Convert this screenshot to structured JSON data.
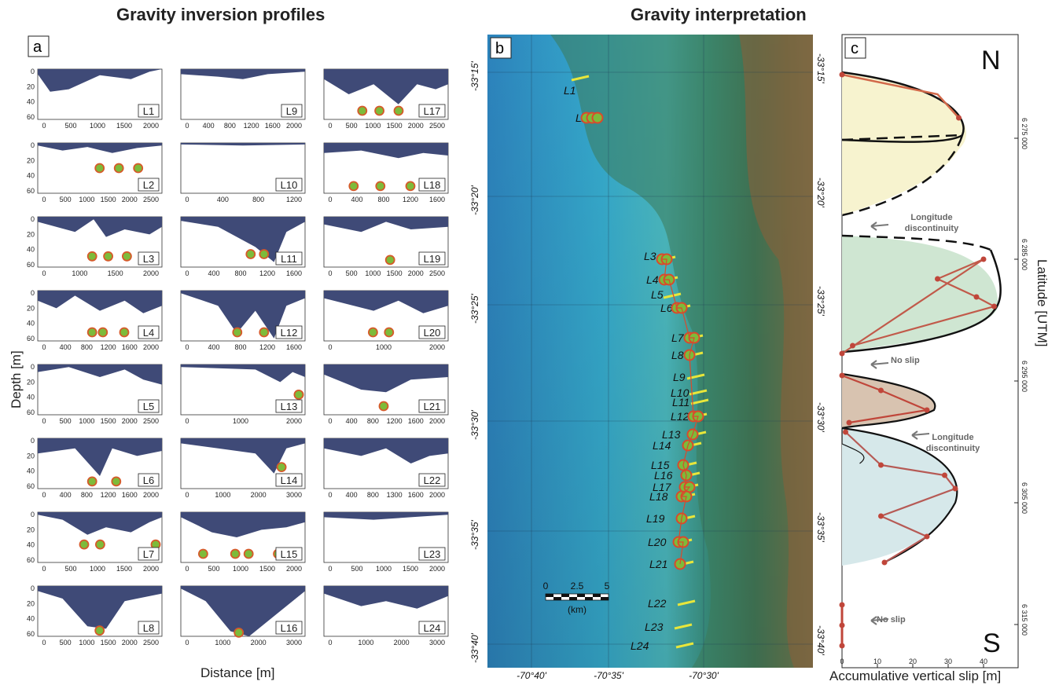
{
  "titles": {
    "left": "Gravity inversion profiles",
    "right": "Gravity interpretation"
  },
  "panel_a": {
    "letter": "a",
    "ylabel": "Depth [m]",
    "xlabel": "Distance [m]",
    "depth_ticks": [
      "0",
      "20",
      "40",
      "60"
    ],
    "profiles": [
      {
        "label": "L1",
        "ticks": [
          "0",
          "500",
          "1000",
          "1500",
          "2000"
        ],
        "dots": []
      },
      {
        "label": "L2",
        "ticks": [
          "0",
          "500",
          "1000",
          "1500",
          "2000",
          "2500"
        ],
        "dots": [
          [
            1300,
            35
          ],
          [
            1750,
            35
          ],
          [
            2200,
            35
          ]
        ]
      },
      {
        "label": "L3",
        "ticks": [
          "0",
          "1000",
          "1500",
          "2000"
        ],
        "dots": [
          [
            900,
            55
          ],
          [
            1200,
            55
          ],
          [
            1550,
            55
          ]
        ]
      },
      {
        "label": "L4",
        "ticks": [
          "0",
          "400",
          "800",
          "1200",
          "1600",
          "2000"
        ],
        "dots": [
          [
            900,
            58
          ],
          [
            1100,
            58
          ],
          [
            1500,
            58
          ]
        ]
      },
      {
        "label": "L5",
        "ticks": [
          "0",
          "500",
          "1000",
          "1500",
          "2000",
          "2500"
        ],
        "dots": []
      },
      {
        "label": "L6",
        "ticks": [
          "0",
          "400",
          "800",
          "1200",
          "1600",
          "2000"
        ],
        "dots": [
          [
            900,
            60
          ],
          [
            1350,
            60
          ]
        ]
      },
      {
        "label": "L7",
        "ticks": [
          "0",
          "500",
          "1000",
          "1500",
          "2000"
        ],
        "dots": [
          [
            750,
            45
          ],
          [
            1050,
            45
          ],
          [
            2100,
            45
          ]
        ]
      },
      {
        "label": "L8",
        "ticks": [
          "0",
          "500",
          "1000",
          "1500",
          "2000",
          "2500"
        ],
        "dots": [
          [
            1300,
            62
          ]
        ]
      },
      {
        "label": "L9",
        "ticks": [
          "0",
          "400",
          "800",
          "1200",
          "1600",
          "2000"
        ],
        "dots": []
      },
      {
        "label": "L10",
        "ticks": [
          "0",
          "400",
          "800",
          "1200"
        ],
        "dots": []
      },
      {
        "label": "L11",
        "ticks": [
          "0",
          "400",
          "800",
          "1200",
          "1600"
        ],
        "dots": [
          [
            950,
            52
          ],
          [
            1150,
            52
          ]
        ]
      },
      {
        "label": "L12",
        "ticks": [
          "0",
          "400",
          "800",
          "1200",
          "1600"
        ],
        "dots": [
          [
            750,
            58
          ],
          [
            1150,
            58
          ]
        ]
      },
      {
        "label": "L13",
        "ticks": [
          "0",
          "1000",
          "2000"
        ],
        "dots": [
          [
            2400,
            42
          ],
          [
            2700,
            42
          ]
        ]
      },
      {
        "label": "L14",
        "ticks": [
          "0",
          "1000",
          "2000",
          "3000"
        ],
        "dots": [
          [
            2650,
            40
          ]
        ]
      },
      {
        "label": "L15",
        "ticks": [
          "0",
          "500",
          "1000",
          "1500",
          "2000"
        ],
        "dots": [
          [
            300,
            58
          ],
          [
            900,
            58
          ],
          [
            1150,
            58
          ],
          [
            1700,
            58
          ]
        ]
      },
      {
        "label": "L16",
        "ticks": [
          "0",
          "1000",
          "2000",
          "3000"
        ],
        "dots": [
          [
            1450,
            65
          ]
        ]
      },
      {
        "label": "L17",
        "ticks": [
          "0",
          "500",
          "1000",
          "1500",
          "2000",
          "2500"
        ],
        "dots": [
          [
            750,
            58
          ],
          [
            1150,
            58
          ],
          [
            1600,
            58
          ]
        ]
      },
      {
        "label": "L18",
        "ticks": [
          "0",
          "400",
          "800",
          "1200",
          "1600"
        ],
        "dots": [
          [
            350,
            60
          ],
          [
            750,
            60
          ],
          [
            1200,
            60
          ]
        ]
      },
      {
        "label": "L19",
        "ticks": [
          "0",
          "500",
          "1000",
          "1500",
          "2000",
          "2500"
        ],
        "dots": [
          [
            1400,
            60
          ]
        ]
      },
      {
        "label": "L20",
        "ticks": [
          "0",
          "1000",
          "2000"
        ],
        "dots": [
          [
            800,
            58
          ],
          [
            1100,
            58
          ]
        ]
      },
      {
        "label": "L21",
        "ticks": [
          "0",
          "400",
          "800",
          "1200",
          "1600",
          "2000"
        ],
        "dots": [
          [
            1000,
            58
          ]
        ]
      },
      {
        "label": "L22",
        "ticks": [
          "0",
          "400",
          "800",
          "1300",
          "1600",
          "2000"
        ],
        "dots": []
      },
      {
        "label": "L23",
        "ticks": [
          "0",
          "500",
          "1000",
          "1500",
          "2000"
        ],
        "dots": []
      },
      {
        "label": "L24",
        "ticks": [
          "0",
          "1000",
          "2000",
          "3000"
        ],
        "dots": []
      }
    ]
  },
  "panel_b": {
    "letter": "b",
    "lat_labels_left": [
      "-33°15'",
      "-33°20'",
      "-33°25'",
      "-33°30'",
      "-33°35'",
      "-33°40'"
    ],
    "lat_labels_right": [
      "-33°15'",
      "-33°20'",
      "-33°25'",
      "-33°30'",
      "-33°35'",
      "-33°40'"
    ],
    "lon_labels": [
      "-70°40'",
      "-70°35'",
      "-70°30'"
    ],
    "scale": {
      "ticks": [
        "0",
        "2.5",
        "5"
      ],
      "unit": "(km)"
    },
    "line_labels": [
      "L1",
      "L2",
      "L3",
      "L4",
      "L5",
      "L6",
      "L7",
      "L8",
      "L9",
      "L10",
      "L11",
      "L12",
      "L13",
      "L14",
      "L15",
      "L16",
      "L17",
      "L18",
      "L19",
      "L20",
      "L21",
      "L22",
      "L23",
      "L24"
    ]
  },
  "panel_c": {
    "letter": "c",
    "north": "N",
    "south": "S",
    "xlabel": "Accumulative vertical slip [m]",
    "ylabel": "Latitude [UTM]",
    "x_ticks": [
      "0",
      "10",
      "20",
      "30",
      "40"
    ],
    "utm_ticks": [
      "6 275 000",
      "6 285 000",
      "6 295 000",
      "6 305 000",
      "6 315 000"
    ],
    "annotations": [
      "Longitude discontinuity",
      "No slip",
      "Longitude discontinuity",
      "No slip"
    ],
    "colors": {
      "yellow": "#f7f3cf",
      "green": "#cfe6d2",
      "brown": "#d8c3b0",
      "blue": "#d6e8ea",
      "slip": "#c0463a"
    }
  }
}
